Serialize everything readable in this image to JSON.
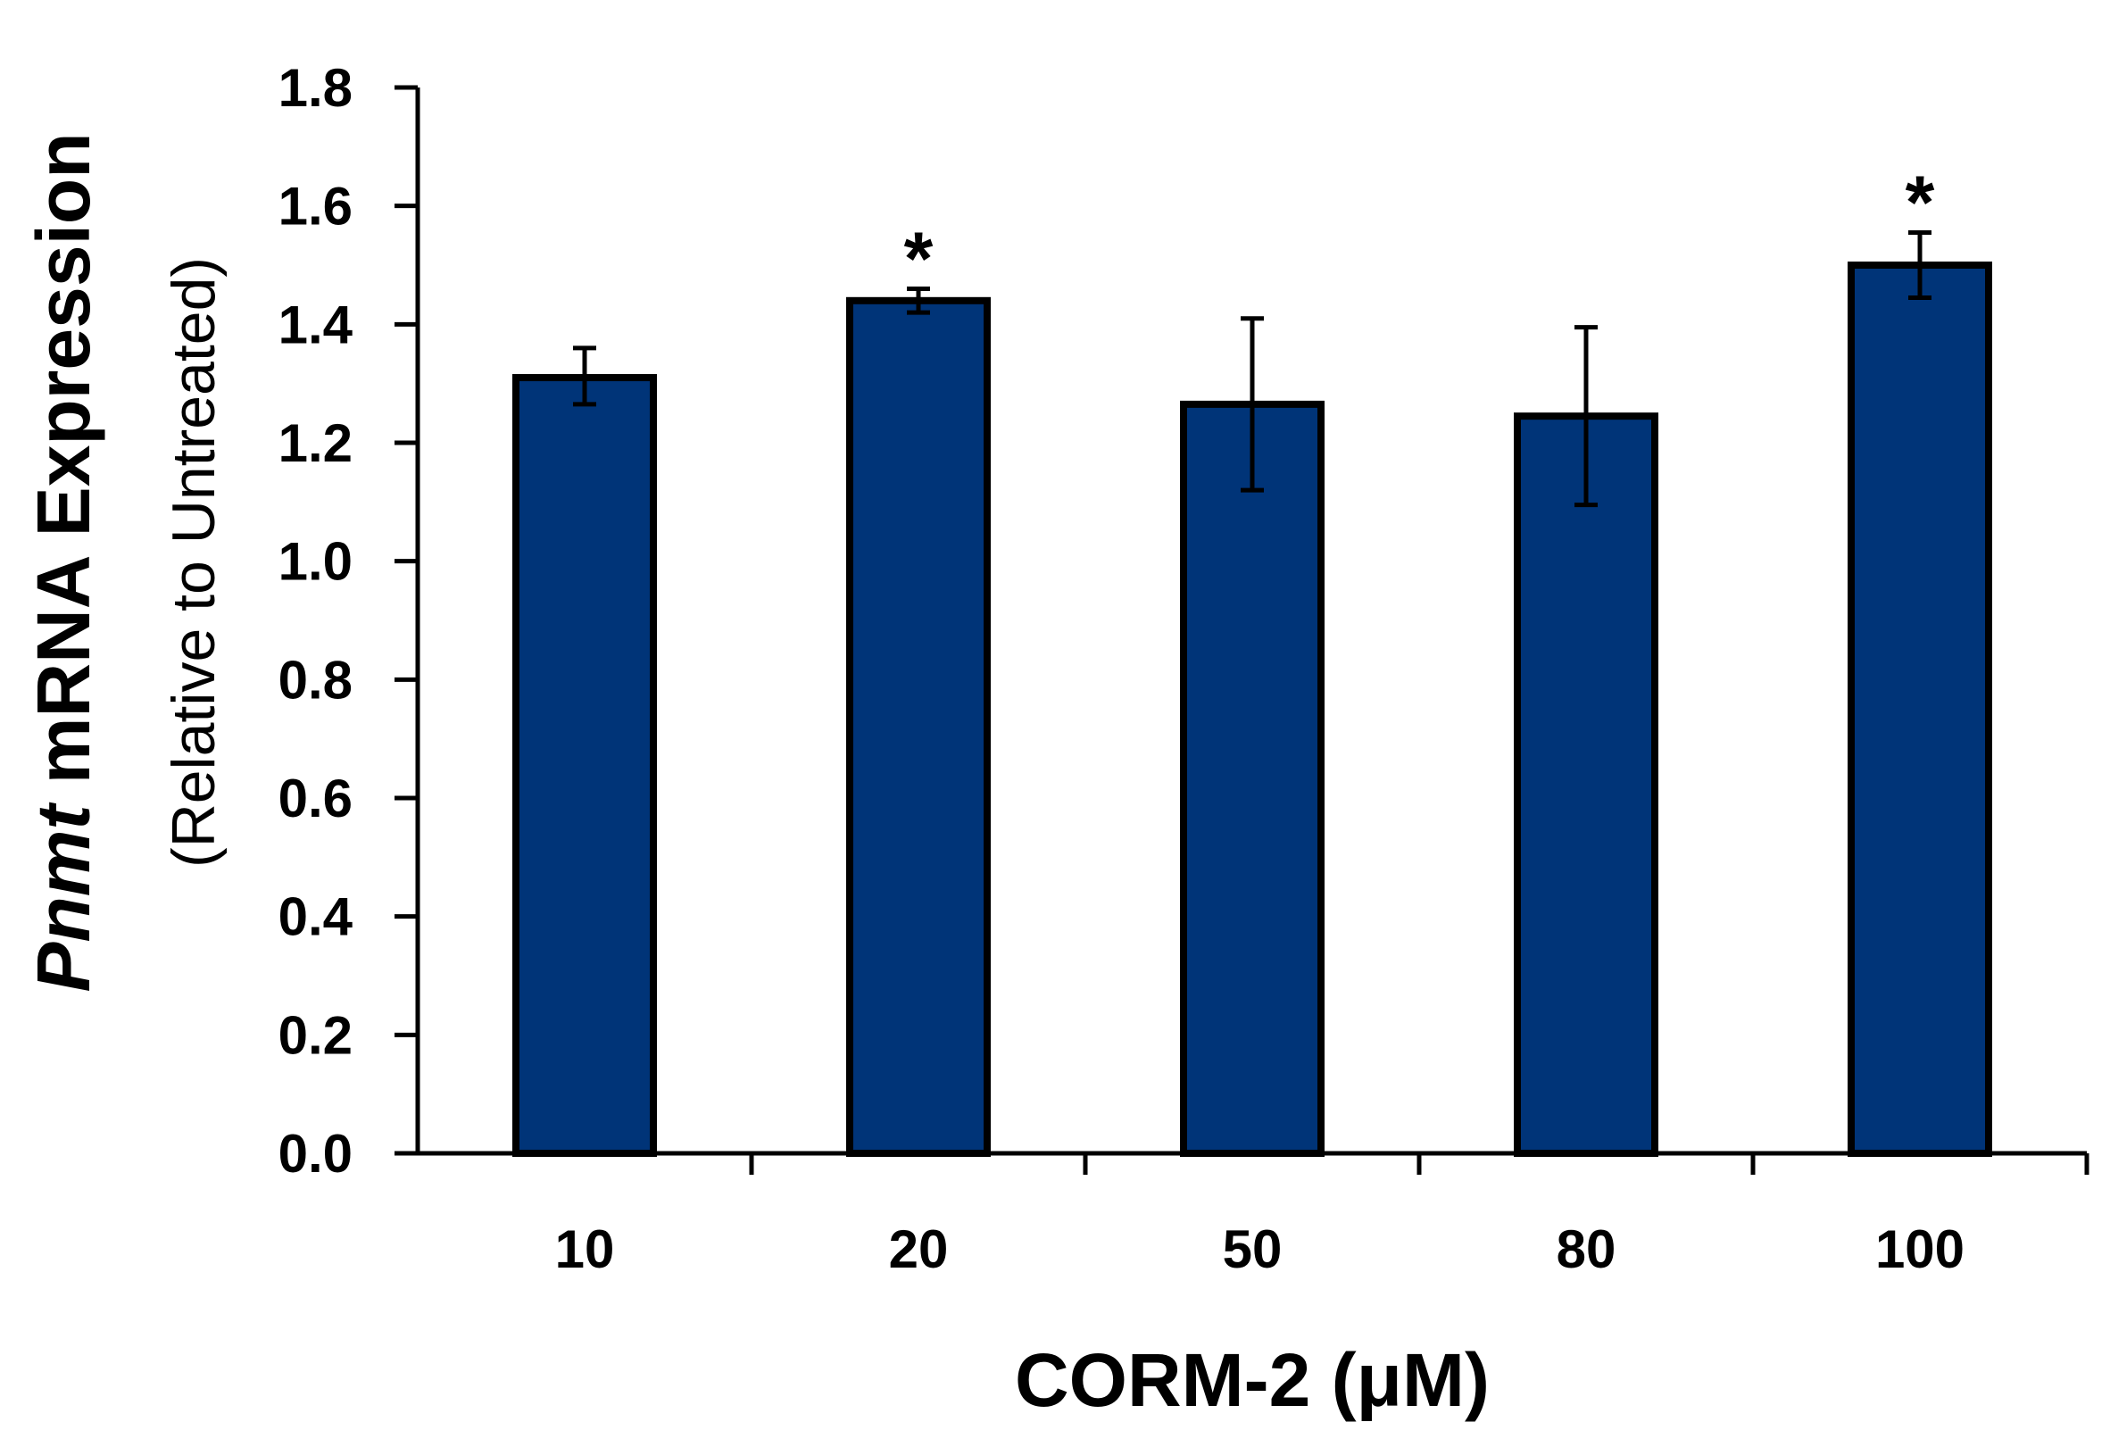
{
  "chart_data": {
    "type": "bar",
    "categories": [
      "10",
      "20",
      "50",
      "80",
      "100"
    ],
    "values": [
      1.31,
      1.44,
      1.265,
      1.245,
      1.5
    ],
    "error_low": [
      1.265,
      1.42,
      1.12,
      1.095,
      1.445
    ],
    "error_high": [
      1.36,
      1.46,
      1.41,
      1.395,
      1.555
    ],
    "annotations": [
      "",
      "*",
      "",
      "",
      "*"
    ],
    "ylim": [
      0.0,
      1.8
    ],
    "yticks": [
      "0.0",
      "0.2",
      "0.4",
      "0.6",
      "0.8",
      "1.0",
      "1.2",
      "1.4",
      "1.6",
      "1.8"
    ],
    "xlabel": "CORM-2 (μM)",
    "ylabel": {
      "gene": "Pnmt",
      "main": " mRNA Expression",
      "sub": "(Relative to Untreated)"
    },
    "grid": false,
    "bar_color": "#003478",
    "edge_color": "#000000"
  }
}
